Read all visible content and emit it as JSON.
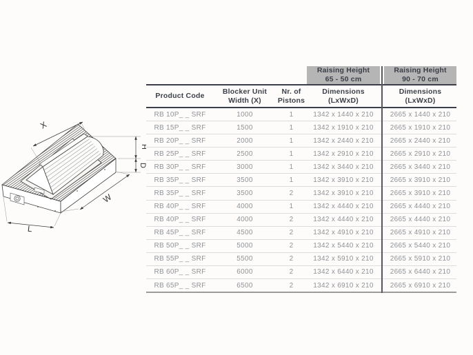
{
  "drawing": {
    "description": "Isometric technical drawing of a wedge road blocker embedded in ground",
    "dimension_labels": {
      "x": "X",
      "h": "H",
      "d": "D",
      "w": "W",
      "l": "L"
    }
  },
  "table": {
    "group_headers": [
      {
        "title": "Raising Height",
        "subtitle": "65 - 50 cm"
      },
      {
        "title": "Raising Height",
        "subtitle": "90 - 70 cm"
      }
    ],
    "columns": [
      {
        "line1": "Product Code",
        "line2": ""
      },
      {
        "line1": "Blocker Unit",
        "line2": "Width (X)"
      },
      {
        "line1": "Nr. of",
        "line2": "Pistons"
      },
      {
        "line1": "Dimensions",
        "line2": "(LxWxD)"
      },
      {
        "line1": "Dimensions",
        "line2": "(LxWxD)"
      }
    ],
    "rows": [
      {
        "code": "RB 10P_ _ SRF",
        "width": "1000",
        "pistons": "1",
        "dim_65_50": "1342 x 1440 x 210",
        "dim_90_70": "2665 x 1440 x 210"
      },
      {
        "code": "RB 15P_ _ SRF",
        "width": "1500",
        "pistons": "1",
        "dim_65_50": "1342 x 1910 x 210",
        "dim_90_70": "2665 x 1910 x 210"
      },
      {
        "code": "RB 20P_ _ SRF",
        "width": "2000",
        "pistons": "1",
        "dim_65_50": "1342 x 2440 x 210",
        "dim_90_70": "2665 x 2440 x 210"
      },
      {
        "code": "RB 25P_ _ SRF",
        "width": "2500",
        "pistons": "1",
        "dim_65_50": "1342 x 2910 x 210",
        "dim_90_70": "2665 x 2910 x 210"
      },
      {
        "code": "RB 30P_ _ SRF",
        "width": "3000",
        "pistons": "1",
        "dim_65_50": "1342 x 3440 x 210",
        "dim_90_70": "2665 x 3440 x 210"
      },
      {
        "code": "RB 35P_ _ SRF",
        "width": "3500",
        "pistons": "1",
        "dim_65_50": "1342 x 3910 x 210",
        "dim_90_70": "2665 x 3910 x 210"
      },
      {
        "code": "RB 35P_ _ SRF",
        "width": "3500",
        "pistons": "2",
        "dim_65_50": "1342 x 3910 x 210",
        "dim_90_70": "2665 x 3910 x 210"
      },
      {
        "code": "RB 40P_ _ SRF",
        "width": "4000",
        "pistons": "1",
        "dim_65_50": "1342 x 4440 x 210",
        "dim_90_70": "2665 x 4440 x 210"
      },
      {
        "code": "RB 40P_ _ SRF",
        "width": "4000",
        "pistons": "2",
        "dim_65_50": "1342 x 4440 x 210",
        "dim_90_70": "2665 x 4440 x 210"
      },
      {
        "code": "RB 45P_ _ SRF",
        "width": "4500",
        "pistons": "2",
        "dim_65_50": "1342 x 4910 x 210",
        "dim_90_70": "2665 x 4910 x 210"
      },
      {
        "code": "RB 50P_ _ SRF",
        "width": "5000",
        "pistons": "2",
        "dim_65_50": "1342 x 5440 x 210",
        "dim_90_70": "2665 x 5440 x 210"
      },
      {
        "code": "RB 55P_ _ SRF",
        "width": "5500",
        "pistons": "2",
        "dim_65_50": "1342 x 5910 x 210",
        "dim_90_70": "2665 x 5910 x 210"
      },
      {
        "code": "RB 60P_ _ SRF",
        "width": "6000",
        "pistons": "2",
        "dim_65_50": "1342 x 6440 x 210",
        "dim_90_70": "2665 x 6440 x 210"
      },
      {
        "code": "RB 65P_ _ SRF",
        "width": "6500",
        "pistons": "2",
        "dim_65_50": "1342 x 6910 x 210",
        "dim_90_70": "2665 x 6910 x 210"
      }
    ]
  },
  "colors": {
    "band_gray": "#b5b5b5",
    "rule_dark": "#3b3e46",
    "row_line": "#dcdcdc",
    "header_text": "#3c4049",
    "data_text": "#8f9297",
    "bottom_line": "#9b9b9b",
    "background": "#fdfcfa"
  }
}
